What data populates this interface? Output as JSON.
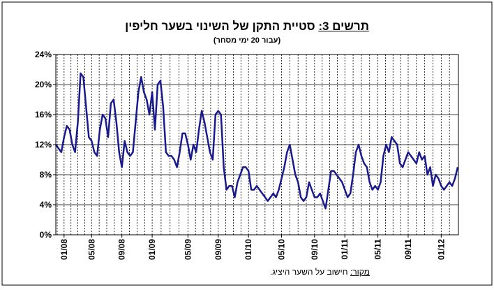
{
  "chart_data": {
    "type": "line",
    "figure_label": "תרשים 3:",
    "title": "סטיית התקן של השינוי בשער חליפין",
    "subtitle": "(עבור 20 ימי מסחר)",
    "source_label": "מקור:",
    "source": "חישוב על השער היציג.",
    "categories": [
      null,
      null,
      null,
      "01/08",
      null,
      null,
      null,
      null,
      null,
      null,
      null,
      null,
      null,
      "05/08",
      null,
      null,
      null,
      null,
      null,
      null,
      null,
      null,
      null,
      null,
      "09/08",
      null,
      null,
      null,
      null,
      null,
      null,
      null,
      null,
      null,
      null,
      "01/09",
      null,
      null,
      null,
      null,
      null,
      null,
      null,
      null,
      null,
      null,
      null,
      null,
      "05/09",
      null,
      null,
      null,
      null,
      null,
      null,
      null,
      null,
      null,
      null,
      "09/09",
      null,
      null,
      null,
      null,
      null,
      null,
      null,
      null,
      null,
      null,
      "01/10",
      null,
      null,
      null,
      null,
      null,
      null,
      null,
      null,
      null,
      null,
      null,
      "05/10",
      null,
      null,
      null,
      null,
      null,
      null,
      null,
      null,
      null,
      null,
      null,
      "09/10",
      null,
      null,
      null,
      null,
      null,
      null,
      null,
      null,
      null,
      null,
      "01/11",
      null,
      null,
      null,
      null,
      null,
      null,
      null,
      null,
      null,
      null,
      null,
      "05/11",
      null,
      null,
      null,
      null,
      null,
      null,
      null,
      null,
      null,
      null,
      "09/11",
      null,
      null,
      null,
      null,
      null,
      null,
      null,
      null,
      null,
      null,
      null,
      "01/12",
      null,
      null,
      null,
      null,
      null,
      null
    ],
    "series": [
      {
        "color": "#1a1a8c",
        "values": [
          12,
          11.5,
          11,
          13,
          14.5,
          14,
          12,
          11,
          15,
          21.5,
          21,
          17,
          13,
          12.5,
          11,
          10.5,
          14,
          16,
          15.5,
          13,
          17.5,
          18,
          15,
          11,
          9,
          12.5,
          11,
          10.5,
          11,
          15,
          19,
          21,
          19,
          18,
          16,
          19,
          14,
          20,
          20.5,
          17,
          11,
          10.5,
          10.5,
          10,
          9,
          11,
          13.5,
          13.5,
          12,
          10,
          12,
          11,
          14,
          16.5,
          15,
          13,
          11,
          10,
          16,
          16.5,
          16,
          9,
          6,
          6.5,
          6.5,
          5,
          7,
          8,
          9,
          9,
          8.5,
          6,
          6,
          6.5,
          6,
          5.5,
          5,
          4.5,
          5,
          5.5,
          5,
          6,
          7.5,
          9,
          11,
          12,
          10,
          8,
          7,
          5,
          4.5,
          5,
          7,
          6,
          5,
          5,
          5.5,
          4.5,
          3.5,
          6,
          8.5,
          8.5,
          8,
          7.5,
          7,
          6,
          5,
          5.5,
          8,
          11,
          12,
          10.5,
          9.5,
          9,
          7,
          6,
          6.5,
          6,
          7,
          10.5,
          12,
          11,
          13,
          12.5,
          12,
          9.5,
          9,
          10,
          11,
          10.5,
          10,
          9.5,
          11,
          10,
          10.5,
          8,
          9,
          6.5,
          8,
          7.5,
          6.5,
          6,
          6.5,
          7,
          6.5,
          7.5,
          9
        ]
      }
    ],
    "ylim": [
      0,
      24
    ],
    "yticks": [
      {
        "value": 0,
        "label": "0%"
      },
      {
        "value": 4,
        "label": "4%"
      },
      {
        "value": 8,
        "label": "8%"
      },
      {
        "value": 12,
        "label": "12%"
      },
      {
        "value": 16,
        "label": "16%"
      },
      {
        "value": 20,
        "label": "20%"
      },
      {
        "value": 24,
        "label": "24%"
      }
    ],
    "grid": true
  }
}
